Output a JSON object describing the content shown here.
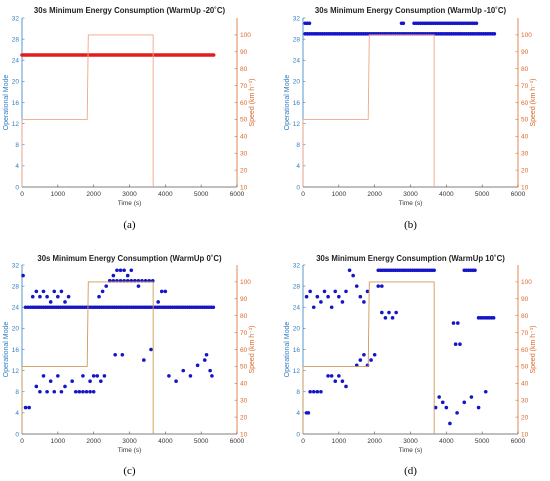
{
  "colors": {
    "mode_axis": "#2f7ec1",
    "speed_axis": "#d9692c",
    "mode_markers": "#1515c8",
    "mode_line_red": "#e21c1c",
    "speed_line_light": "#f3a487",
    "speed_line_tan": "#cd9a55"
  },
  "chart_data": [
    {
      "type": "scatter",
      "caption": "(a)",
      "title": "30s Minimum Energy Consumption (WarmUp -20˚C)",
      "xlabel": "Time (s)",
      "ylabel": "Operational Mode",
      "y2label": "Speed (km h⁻¹)",
      "xlim": [
        0,
        6000
      ],
      "ylim": [
        0,
        32
      ],
      "y2lim": [
        10,
        110
      ],
      "xticks": [
        "0",
        "1000",
        "2000",
        "3000",
        "4000",
        "5000",
        "6000"
      ],
      "yticks": [
        "0",
        "4",
        "8",
        "12",
        "16",
        "20",
        "24",
        "28",
        "32"
      ],
      "y2ticks": [
        "10",
        "20",
        "30",
        "40",
        "50",
        "60",
        "70",
        "80",
        "90",
        "100"
      ],
      "mode_style": "line",
      "mode_color": "#e21c1c",
      "speed_color": "#f3a487",
      "series": [
        {
          "name": "Operational Mode",
          "axis": "left",
          "x": [
            0,
            5350
          ],
          "y": [
            25,
            25
          ]
        },
        {
          "name": "Speed",
          "axis": "right",
          "x": [
            0,
            0,
            1820,
            1850,
            3660,
            3660
          ],
          "y": [
            10,
            50,
            50,
            100,
            100,
            10
          ]
        }
      ]
    },
    {
      "type": "scatter",
      "caption": "(b)",
      "title": "30s Minimum Energy Consumption (WarmUp -10˚C)",
      "xlabel": "Time (s)",
      "ylabel": "Operational Mode",
      "y2label": "Speed (km h⁻¹)",
      "xlim": [
        0,
        6000
      ],
      "ylim": [
        0,
        32
      ],
      "y2lim": [
        10,
        110
      ],
      "xticks": [
        "0",
        "1000",
        "2000",
        "3000",
        "4000",
        "5000",
        "6000"
      ],
      "yticks": [
        "0",
        "4",
        "8",
        "12",
        "16",
        "20",
        "24",
        "28",
        "32"
      ],
      "y2ticks": [
        "10",
        "20",
        "30",
        "40",
        "50",
        "60",
        "70",
        "80",
        "90",
        "100"
      ],
      "mode_style": "markers",
      "mode_color": "#1515c8",
      "speed_color": "#f3a487",
      "series": [
        {
          "name": "Operational Mode",
          "axis": "left",
          "x": [
            60,
            120,
            180,
            240,
            300,
            360,
            420,
            480,
            540,
            600,
            660,
            720,
            780,
            840,
            900,
            960,
            1020,
            1080,
            1140,
            1200,
            1260,
            1320,
            1380,
            1440,
            1500,
            1560,
            1620,
            1680,
            1740,
            1800,
            1860,
            1920,
            1980,
            2040,
            2100,
            2160,
            2220,
            2280,
            2340,
            2400,
            2460,
            2520,
            2580,
            2640,
            2700,
            2760,
            2820,
            2880,
            2940,
            3000,
            3060,
            3120,
            3180,
            3240,
            3300,
            3360,
            3420,
            3480,
            3540,
            3600,
            3660,
            3720,
            3780,
            3840,
            3900,
            3960,
            4020,
            4080,
            4140,
            4200,
            4260,
            4320,
            4380,
            4440,
            4500,
            4560,
            4620,
            4680,
            4740,
            4800,
            4860,
            4920,
            4980,
            5040,
            5100,
            5160,
            5220,
            5280,
            5340,
            60,
            120,
            180,
            2750,
            2800,
            3100,
            3160,
            3220,
            3280,
            3340,
            3400,
            3460,
            3520,
            3580,
            3640,
            3700,
            3760,
            3820,
            3880,
            3940,
            4000,
            4060,
            4120,
            4180,
            4240,
            4300,
            4360,
            4420,
            4480,
            4540,
            4600,
            4660,
            4720,
            4780,
            4840
          ],
          "y": [
            29,
            29,
            29,
            29,
            29,
            29,
            29,
            29,
            29,
            29,
            29,
            29,
            29,
            29,
            29,
            29,
            29,
            29,
            29,
            29,
            29,
            29,
            29,
            29,
            29,
            29,
            29,
            29,
            29,
            29,
            29,
            29,
            29,
            29,
            29,
            29,
            29,
            29,
            29,
            29,
            29,
            29,
            29,
            29,
            29,
            29,
            29,
            29,
            29,
            29,
            29,
            29,
            29,
            29,
            29,
            29,
            29,
            29,
            29,
            29,
            29,
            29,
            29,
            29,
            29,
            29,
            29,
            29,
            29,
            29,
            29,
            29,
            29,
            29,
            29,
            29,
            29,
            29,
            29,
            29,
            29,
            29,
            29,
            29,
            29,
            29,
            29,
            29,
            29,
            31,
            31,
            31,
            31,
            31,
            31,
            31,
            31,
            31,
            31,
            31,
            31,
            31,
            31,
            31,
            31,
            31,
            31,
            31,
            31,
            31,
            31,
            31,
            31,
            31,
            31,
            31,
            31,
            31,
            31,
            31,
            31,
            31,
            31,
            31
          ]
        },
        {
          "name": "Speed",
          "axis": "right",
          "x": [
            0,
            0,
            1820,
            1850,
            3660,
            3660
          ],
          "y": [
            10,
            50,
            50,
            100,
            100,
            10
          ]
        }
      ]
    },
    {
      "type": "scatter",
      "caption": "(c)",
      "title": "30s Minimum Energy Consumption (WarmUp 0˚C)",
      "xlabel": "Time (s)",
      "ylabel": "Operational Mode",
      "y2label": "Speed (km h⁻¹)",
      "xlim": [
        0,
        6000
      ],
      "ylim": [
        0,
        32
      ],
      "y2lim": [
        10,
        110
      ],
      "xticks": [
        "0",
        "1000",
        "2000",
        "3000",
        "4000",
        "5000",
        "6000"
      ],
      "yticks": [
        "0",
        "4",
        "8",
        "12",
        "16",
        "20",
        "24",
        "28",
        "32"
      ],
      "y2ticks": [
        "10",
        "20",
        "30",
        "40",
        "50",
        "60",
        "70",
        "80",
        "90",
        "100"
      ],
      "mode_style": "markers",
      "mode_color": "#1515c8",
      "speed_color": "#cd9a55",
      "series": [
        {
          "name": "Operational Mode",
          "axis": "left",
          "x": [
            30,
            100,
            170,
            240,
            300,
            360,
            420,
            480,
            540,
            600,
            660,
            720,
            780,
            840,
            900,
            960,
            1020,
            1080,
            1140,
            1200,
            1260,
            1320,
            1380,
            1440,
            1500,
            1560,
            1620,
            1680,
            1740,
            1800,
            1860,
            1920,
            1980,
            2040,
            2100,
            2160,
            2220,
            2280,
            2340,
            2400,
            2460,
            2520,
            2580,
            2640,
            2700,
            2760,
            2820,
            2880,
            2940,
            3000,
            3060,
            3120,
            3180,
            3240,
            3300,
            3360,
            3420,
            3480,
            3540,
            3600,
            3660,
            3720,
            3780,
            3840,
            3900,
            3960,
            4020,
            4080,
            4140,
            4200,
            4260,
            4320,
            4380,
            4440,
            4500,
            4560,
            4620,
            4680,
            4740,
            4800,
            4860,
            4920,
            4980,
            5040,
            5100,
            5160,
            5220,
            5280,
            5340,
            300,
            400,
            500,
            600,
            700,
            800,
            900,
            1000,
            1100,
            1200,
            1300,
            2150,
            2250,
            2350,
            2450,
            2550,
            2650,
            2750,
            2850,
            2950,
            3050,
            3150,
            3250,
            400,
            600,
            800,
            1000,
            1200,
            1400,
            1700,
            1900,
            500,
            700,
            900,
            1100,
            2000,
            2100,
            2200,
            2300,
            2450,
            2550,
            2650,
            2750,
            2850,
            2950,
            3050,
            3150,
            3250,
            3350,
            3450,
            3550,
            3650,
            4100,
            4300,
            4500,
            4700,
            4900,
            5100,
            5300,
            100,
            200,
            1500,
            1600,
            1700,
            1800,
            1900,
            2000,
            3800,
            3900,
            4000,
            5150,
            5250,
            2600,
            2800,
            3400,
            3600
          ],
          "y": [
            30,
            24,
            24,
            24,
            24,
            24,
            24,
            24,
            24,
            24,
            24,
            24,
            24,
            24,
            24,
            24,
            24,
            24,
            24,
            24,
            24,
            24,
            24,
            24,
            24,
            24,
            24,
            24,
            24,
            24,
            24,
            24,
            24,
            24,
            24,
            24,
            24,
            24,
            24,
            24,
            24,
            24,
            24,
            24,
            24,
            24,
            24,
            24,
            24,
            24,
            24,
            24,
            24,
            24,
            24,
            24,
            24,
            24,
            24,
            24,
            24,
            24,
            24,
            24,
            24,
            24,
            24,
            24,
            24,
            24,
            24,
            24,
            24,
            24,
            24,
            24,
            24,
            24,
            24,
            24,
            24,
            24,
            24,
            24,
            24,
            24,
            24,
            24,
            24,
            26,
            27,
            26,
            27,
            26,
            25,
            27,
            26,
            27,
            25,
            26,
            26,
            27,
            28,
            29,
            30,
            31,
            31,
            31,
            30,
            31,
            29,
            28,
            9,
            11,
            10,
            11,
            9,
            10,
            11,
            10,
            8,
            8,
            8,
            8,
            11,
            11,
            10,
            11,
            29,
            29,
            29,
            29,
            29,
            29,
            29,
            29,
            29,
            29,
            29,
            29,
            29,
            11,
            10,
            12,
            11,
            13,
            14,
            11,
            5,
            5,
            8,
            8,
            8,
            8,
            8,
            8,
            25,
            27,
            27,
            15,
            12,
            15,
            15,
            14,
            16
          ]
        },
        {
          "name": "Speed",
          "axis": "right",
          "x": [
            0,
            0,
            1820,
            1850,
            3660,
            3660
          ],
          "y": [
            10,
            50,
            50,
            100,
            100,
            10
          ]
        }
      ]
    },
    {
      "type": "scatter",
      "caption": "(d)",
      "title": "30s Minimum Energy Consumption (WarmUp 10˚C)",
      "xlabel": "Time (s)",
      "ylabel": "Operational Mode",
      "y2label": "Speed (km h⁻¹)",
      "xlim": [
        0,
        6000
      ],
      "ylim": [
        0,
        32
      ],
      "y2lim": [
        10,
        110
      ],
      "xticks": [
        "0",
        "1000",
        "2000",
        "3000",
        "4000",
        "5000",
        "6000"
      ],
      "yticks": [
        "0",
        "4",
        "8",
        "12",
        "16",
        "20",
        "24",
        "28",
        "32"
      ],
      "y2ticks": [
        "10",
        "20",
        "30",
        "40",
        "50",
        "60",
        "70",
        "80",
        "90",
        "100"
      ],
      "mode_style": "markers",
      "mode_color": "#1515c8",
      "speed_color": "#cd9a55",
      "series": [
        {
          "name": "Operational Mode",
          "axis": "left",
          "x": [
            2100,
            2160,
            2220,
            2280,
            2340,
            2400,
            2460,
            2520,
            2580,
            2640,
            2700,
            2760,
            2820,
            2880,
            2940,
            3000,
            3060,
            3120,
            3180,
            3240,
            3300,
            3360,
            3420,
            3480,
            3540,
            3600,
            3660,
            4500,
            4560,
            4620,
            4680,
            4740,
            4800,
            100,
            200,
            300,
            400,
            500,
            600,
            700,
            800,
            900,
            1000,
            1100,
            1200,
            1300,
            1400,
            1500,
            1600,
            1700,
            1800,
            4900,
            4960,
            5020,
            5080,
            5140,
            5200,
            5260,
            5320,
            4200,
            4260,
            4320,
            4380,
            100,
            150,
            200,
            300,
            400,
            500,
            700,
            800,
            900,
            1000,
            1100,
            1200,
            2200,
            2300,
            2400,
            2500,
            2600,
            3700,
            3800,
            3900,
            4000,
            4100,
            4300,
            4500,
            4700,
            4900,
            5100,
            1500,
            1600,
            1700,
            1800,
            1900,
            2000,
            2100,
            2200
          ],
          "y": [
            31,
            31,
            31,
            31,
            31,
            31,
            31,
            31,
            31,
            31,
            31,
            31,
            31,
            31,
            31,
            31,
            31,
            31,
            31,
            31,
            31,
            31,
            31,
            31,
            31,
            31,
            31,
            31,
            31,
            31,
            31,
            31,
            31,
            26,
            27,
            24,
            26,
            25,
            27,
            26,
            24,
            27,
            26,
            25,
            27,
            31,
            30,
            28,
            26,
            25,
            27,
            22,
            22,
            22,
            22,
            22,
            22,
            22,
            22,
            21,
            17,
            21,
            17,
            4,
            4,
            8,
            8,
            8,
            8,
            11,
            11,
            10,
            11,
            10,
            9,
            23,
            22,
            23,
            22,
            23,
            5,
            7,
            6,
            5,
            2,
            4,
            6,
            7,
            5,
            8,
            13,
            14,
            15,
            13,
            14,
            15,
            28,
            28
          ]
        },
        {
          "name": "Speed",
          "axis": "right",
          "x": [
            0,
            0,
            1820,
            1850,
            3660,
            3660
          ],
          "y": [
            10,
            50,
            50,
            100,
            100,
            10
          ]
        }
      ]
    }
  ]
}
